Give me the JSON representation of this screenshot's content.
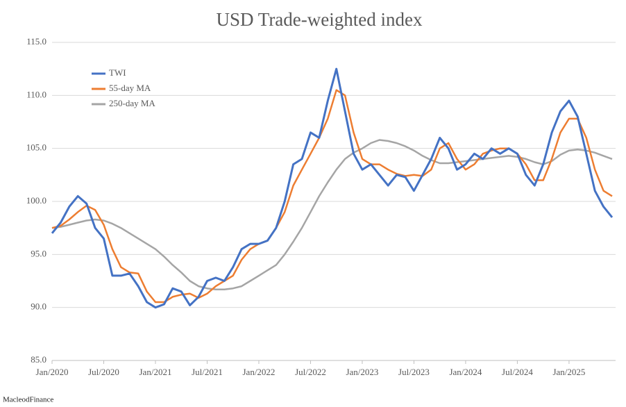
{
  "chart_data": {
    "type": "line",
    "title": "USD Trade-weighted index",
    "source": "MacleodFinance",
    "x": [
      "2020-01",
      "2020-02",
      "2020-03",
      "2020-04",
      "2020-05",
      "2020-06",
      "2020-07",
      "2020-08",
      "2020-09",
      "2020-10",
      "2020-11",
      "2020-12",
      "2021-01",
      "2021-02",
      "2021-03",
      "2021-04",
      "2021-05",
      "2021-06",
      "2021-07",
      "2021-08",
      "2021-09",
      "2021-10",
      "2021-11",
      "2021-12",
      "2022-01",
      "2022-02",
      "2022-03",
      "2022-04",
      "2022-05",
      "2022-06",
      "2022-07",
      "2022-08",
      "2022-09",
      "2022-10",
      "2022-11",
      "2022-12",
      "2023-01",
      "2023-02",
      "2023-03",
      "2023-04",
      "2023-05",
      "2023-06",
      "2023-07",
      "2023-08",
      "2023-09",
      "2023-10",
      "2023-11",
      "2023-12",
      "2024-01",
      "2024-02",
      "2024-03",
      "2024-04",
      "2024-05",
      "2024-06",
      "2024-07",
      "2024-08",
      "2024-09",
      "2024-10",
      "2024-11",
      "2024-12",
      "2025-01",
      "2025-02",
      "2025-03",
      "2025-04",
      "2025-05",
      "2025-06"
    ],
    "series": [
      {
        "name": "TWI",
        "color": "#4472c4",
        "width": 3,
        "values": [
          97.0,
          98.0,
          99.5,
          100.5,
          99.8,
          97.5,
          96.5,
          93.0,
          93.0,
          93.2,
          92.0,
          90.5,
          90.0,
          90.3,
          91.8,
          91.5,
          90.2,
          91.0,
          92.5,
          92.8,
          92.5,
          93.8,
          95.5,
          96.0,
          96.0,
          96.3,
          97.5,
          100.0,
          103.5,
          104.0,
          106.5,
          106.0,
          109.5,
          112.5,
          108.5,
          104.5,
          103.0,
          103.5,
          102.5,
          101.5,
          102.5,
          102.3,
          101.0,
          102.5,
          104.0,
          106.0,
          105.0,
          103.0,
          103.5,
          104.5,
          104.0,
          105.0,
          104.5,
          105.0,
          104.5,
          102.5,
          101.5,
          103.5,
          106.5,
          108.5,
          109.5,
          108.0,
          104.5,
          101.0,
          99.5,
          98.5
        ]
      },
      {
        "name": "55-day MA",
        "color": "#ed7d31",
        "width": 2.5,
        "values": [
          97.5,
          97.7,
          98.3,
          99.0,
          99.6,
          99.2,
          97.8,
          95.5,
          93.8,
          93.3,
          93.2,
          91.5,
          90.5,
          90.5,
          91.0,
          91.2,
          91.3,
          90.9,
          91.3,
          92.0,
          92.5,
          93.0,
          94.5,
          95.5,
          96.0,
          96.3,
          97.5,
          99.0,
          101.5,
          103.0,
          104.5,
          106.0,
          107.8,
          110.5,
          110.0,
          106.5,
          104.0,
          103.5,
          103.5,
          103.0,
          102.6,
          102.4,
          102.5,
          102.4,
          103.0,
          105.0,
          105.5,
          104.0,
          103.0,
          103.5,
          104.5,
          104.8,
          105.0,
          105.0,
          104.5,
          103.5,
          102.0,
          102.0,
          104.0,
          106.5,
          107.8,
          107.8,
          106.0,
          103.0,
          101.0,
          100.5
        ]
      },
      {
        "name": "250-day MA",
        "color": "#a5a5a5",
        "width": 2.5,
        "values": [
          97.5,
          97.6,
          97.8,
          98.0,
          98.2,
          98.3,
          98.2,
          97.9,
          97.5,
          97.0,
          96.5,
          96.0,
          95.5,
          94.8,
          94.0,
          93.3,
          92.5,
          92.0,
          91.8,
          91.7,
          91.7,
          91.8,
          92.0,
          92.5,
          93.0,
          93.5,
          94.0,
          95.0,
          96.2,
          97.5,
          99.0,
          100.5,
          101.8,
          103.0,
          104.0,
          104.6,
          105.0,
          105.5,
          105.8,
          105.7,
          105.5,
          105.2,
          104.8,
          104.3,
          103.9,
          103.6,
          103.6,
          103.7,
          103.8,
          103.9,
          104.0,
          104.1,
          104.2,
          104.3,
          104.2,
          104.0,
          103.7,
          103.5,
          103.8,
          104.4,
          104.8,
          104.9,
          104.8,
          104.6,
          104.3,
          104.0
        ]
      }
    ],
    "xlim": [
      "2020-01",
      "2025-06"
    ],
    "xticks": [
      {
        "value": "2020-01",
        "label": "Jan/2020"
      },
      {
        "value": "2020-07",
        "label": "Jul/2020"
      },
      {
        "value": "2021-01",
        "label": "Jan/2021"
      },
      {
        "value": "2021-07",
        "label": "Jul/2021"
      },
      {
        "value": "2022-01",
        "label": "Jan/2022"
      },
      {
        "value": "2022-07",
        "label": "Jul/2022"
      },
      {
        "value": "2023-01",
        "label": "Jan/2023"
      },
      {
        "value": "2023-07",
        "label": "Jul/2023"
      },
      {
        "value": "2024-01",
        "label": "Jan/2024"
      },
      {
        "value": "2024-07",
        "label": "Jul/2024"
      },
      {
        "value": "2025-01",
        "label": "Jan/2025"
      }
    ],
    "ylim": [
      85,
      115
    ],
    "yticks": [
      {
        "value": 85,
        "label": "85.0"
      },
      {
        "value": 90,
        "label": "90.0"
      },
      {
        "value": 95,
        "label": "95.0"
      },
      {
        "value": 100,
        "label": "100.0"
      },
      {
        "value": 105,
        "label": "105.0"
      },
      {
        "value": 110,
        "label": "110.0"
      },
      {
        "value": 115,
        "label": "115.0"
      }
    ],
    "grid": true,
    "legend": "upper left"
  }
}
